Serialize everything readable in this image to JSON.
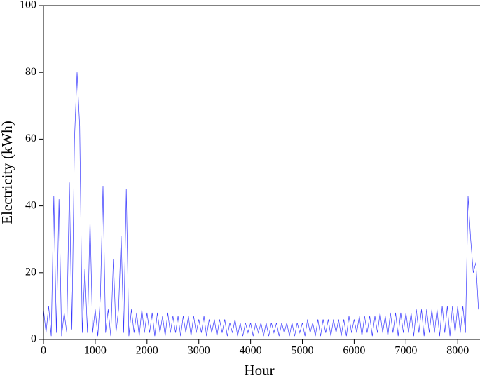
{
  "chart_data": {
    "type": "line",
    "x_label": "Hour",
    "y_label": "Electricity (kWh)",
    "xlim": [
      0,
      8430
    ],
    "ylim": [
      0,
      100
    ],
    "xticks": [
      0,
      1000,
      2000,
      3000,
      4000,
      5000,
      6000,
      7000,
      8000
    ],
    "yticks": [
      0,
      20,
      40,
      60,
      80,
      100
    ],
    "series": [
      {
        "color": "#3a3aff",
        "x": [
          0,
          50,
          100,
          150,
          200,
          250,
          300,
          350,
          400,
          450,
          500,
          550,
          600,
          650,
          700,
          750,
          800,
          850,
          900,
          950,
          1000,
          1050,
          1100,
          1150,
          1200,
          1250,
          1300,
          1350,
          1400,
          1450,
          1500,
          1550,
          1600,
          1650,
          1700,
          1750,
          1800,
          1850,
          1900,
          1950,
          2000,
          2050,
          2100,
          2150,
          2200,
          2250,
          2300,
          2350,
          2400,
          2450,
          2500,
          2550,
          2600,
          2650,
          2700,
          2750,
          2800,
          2850,
          2900,
          2950,
          3000,
          3050,
          3100,
          3150,
          3200,
          3250,
          3300,
          3350,
          3400,
          3450,
          3500,
          3550,
          3600,
          3650,
          3700,
          3750,
          3800,
          3850,
          3900,
          3950,
          4000,
          4050,
          4100,
          4150,
          4200,
          4250,
          4300,
          4350,
          4400,
          4450,
          4500,
          4550,
          4600,
          4650,
          4700,
          4750,
          4800,
          4850,
          4900,
          4950,
          5000,
          5050,
          5100,
          5150,
          5200,
          5250,
          5300,
          5350,
          5400,
          5450,
          5500,
          5550,
          5600,
          5650,
          5700,
          5750,
          5800,
          5850,
          5900,
          5950,
          6000,
          6050,
          6100,
          6150,
          6200,
          6250,
          6300,
          6350,
          6400,
          6450,
          6500,
          6550,
          6600,
          6650,
          6700,
          6750,
          6800,
          6850,
          6900,
          6950,
          7000,
          7050,
          7100,
          7150,
          7200,
          7250,
          7300,
          7350,
          7400,
          7450,
          7500,
          7550,
          7600,
          7650,
          7700,
          7750,
          7800,
          7850,
          7900,
          7950,
          8000,
          8050,
          8100,
          8150,
          8200,
          8250,
          8300,
          8350,
          8400
        ],
        "values": [
          9,
          2,
          10,
          1,
          43,
          2,
          42,
          1,
          8,
          2,
          47,
          3,
          60,
          80,
          64,
          2,
          21,
          2,
          36,
          2,
          9,
          1,
          13,
          46,
          2,
          9,
          1,
          24,
          2,
          9,
          31,
          2,
          45,
          1,
          9,
          2,
          8,
          1,
          9,
          2,
          8,
          2,
          8,
          1,
          8,
          2,
          7,
          1,
          8,
          2,
          7,
          2,
          7,
          1,
          7,
          2,
          7,
          1,
          7,
          2,
          6,
          2,
          7,
          1,
          6,
          2,
          6,
          1,
          6,
          2,
          6,
          1,
          5,
          2,
          6,
          1,
          5,
          1,
          5,
          2,
          5,
          1,
          5,
          2,
          5,
          1,
          5,
          1,
          5,
          2,
          5,
          1,
          5,
          2,
          5,
          1,
          5,
          1,
          5,
          2,
          5,
          1,
          6,
          2,
          5,
          1,
          6,
          1,
          6,
          2,
          6,
          1,
          6,
          2,
          6,
          1,
          6,
          1,
          7,
          2,
          6,
          2,
          7,
          1,
          7,
          2,
          7,
          1,
          7,
          2,
          8,
          2,
          7,
          1,
          8,
          2,
          8,
          1,
          8,
          2,
          8,
          2,
          8,
          1,
          9,
          2,
          9,
          1,
          9,
          2,
          9,
          2,
          9,
          1,
          10,
          2,
          10,
          1,
          10,
          2,
          10,
          2,
          10,
          2,
          43,
          30,
          20,
          23,
          9
        ]
      }
    ]
  }
}
